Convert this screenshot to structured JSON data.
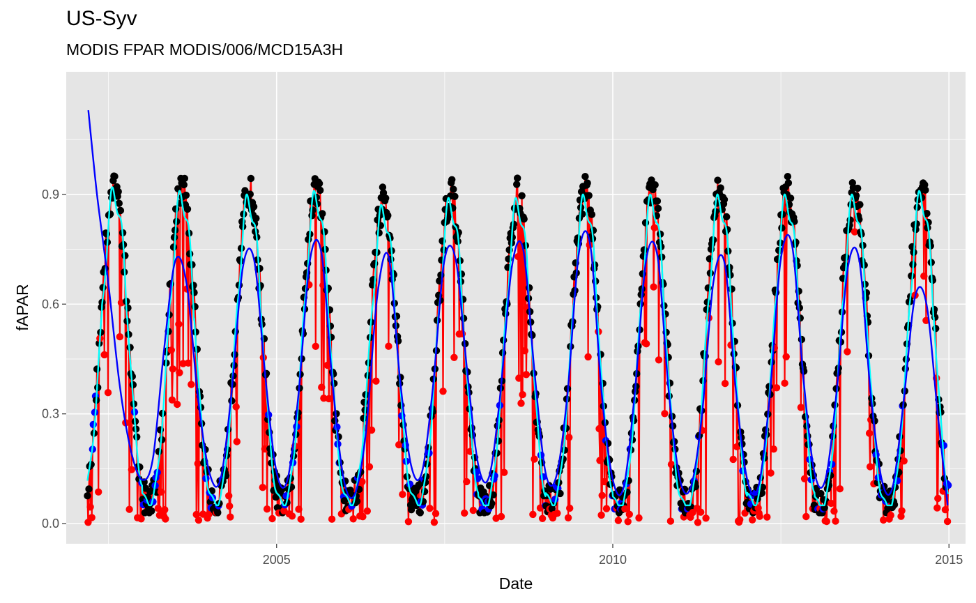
{
  "title": "US-Syv",
  "subtitle": "MODIS FPAR MODIS/006/MCD15A3H",
  "chart_data": {
    "type": "line",
    "title": "US-Syv",
    "subtitle": "MODIS FPAR MODIS/006/MCD15A3H",
    "xlabel": "Date",
    "ylabel": "fAPAR",
    "xlim": [
      "2001-11-15",
      "2015-04-01"
    ],
    "ylim": [
      -0.055,
      1.235
    ],
    "x_ticks": [
      "2005",
      "2010",
      "2015"
    ],
    "y_ticks": [
      "0.0",
      "0.3",
      "0.6",
      "0.9"
    ],
    "grid": true,
    "legend": "none",
    "colors": {
      "panel": "#e5e5e5",
      "grid": "#ffffff",
      "raw_points": "#000000",
      "flagged_points": "#ff0000",
      "gapfilled_points": "#0000ff",
      "raw_line": "#ff0000",
      "spline_smooth": "#00ffff",
      "loess_smooth": "#0000ff"
    },
    "seasonal_pattern": {
      "years": [
        2002,
        2003,
        2004,
        2005,
        2006,
        2007,
        2008,
        2009,
        2010,
        2011,
        2012,
        2013,
        2014
      ],
      "summer_peak": [
        0.93,
        0.92,
        0.91,
        0.92,
        0.88,
        0.9,
        0.9,
        0.91,
        0.91,
        0.91,
        0.91,
        0.91,
        0.92
      ],
      "winter_min": [
        0.08,
        0.06,
        0.06,
        0.06,
        0.06,
        0.06,
        0.05,
        0.06,
        0.05,
        0.05,
        0.06,
        0.05,
        0.05
      ]
    },
    "series": [
      {
        "key": "loess_smooth",
        "x": [
          "2002-03-15",
          "2002-05-01",
          "2002-07-01",
          "2002-09-01",
          "2002-11-01",
          "2003-01-01",
          "2003-03-01",
          "2003-05-01",
          "2003-07-01",
          "2003-09-01",
          "2003-11-01",
          "2004-01-01",
          "2004-03-01",
          "2004-05-01",
          "2004-07-01",
          "2004-09-01",
          "2004-11-01",
          "2005-01-01",
          "2005-03-01",
          "2005-05-01",
          "2005-07-01",
          "2005-09-01",
          "2005-11-01",
          "2006-01-01",
          "2006-03-01",
          "2006-05-01",
          "2006-07-01",
          "2006-09-01",
          "2006-11-01",
          "2007-01-01",
          "2007-03-01",
          "2007-05-01",
          "2007-07-01",
          "2007-09-01",
          "2007-11-01",
          "2008-01-01",
          "2008-03-01",
          "2008-05-01",
          "2008-07-01",
          "2008-09-01",
          "2008-11-01",
          "2009-01-01",
          "2009-03-01",
          "2009-05-01",
          "2009-07-01",
          "2009-09-01",
          "2009-11-01",
          "2010-01-01",
          "2010-03-01",
          "2010-05-01",
          "2010-07-01",
          "2010-09-01",
          "2010-11-01",
          "2011-01-01",
          "2011-03-01",
          "2011-05-01",
          "2011-07-01",
          "2011-09-01",
          "2011-11-01",
          "2012-01-01",
          "2012-03-01",
          "2012-05-01",
          "2012-07-01",
          "2012-09-01",
          "2012-11-01",
          "2013-01-01",
          "2013-03-01",
          "2013-05-01",
          "2013-07-01",
          "2013-09-01",
          "2013-11-01",
          "2014-01-01",
          "2014-03-01",
          "2014-05-01",
          "2014-07-01",
          "2014-09-01",
          "2014-11-01",
          "2014-12-25"
        ],
        "y": [
          1.13,
          0.9,
          0.66,
          0.38,
          0.2,
          0.12,
          0.18,
          0.48,
          0.72,
          0.65,
          0.34,
          0.14,
          0.12,
          0.36,
          0.7,
          0.72,
          0.4,
          0.14,
          0.12,
          0.36,
          0.72,
          0.74,
          0.38,
          0.12,
          0.08,
          0.25,
          0.62,
          0.73,
          0.4,
          0.16,
          0.14,
          0.38,
          0.72,
          0.72,
          0.42,
          0.16,
          0.13,
          0.36,
          0.7,
          0.75,
          0.42,
          0.14,
          0.13,
          0.36,
          0.74,
          0.76,
          0.36,
          0.12,
          0.1,
          0.36,
          0.72,
          0.73,
          0.36,
          0.12,
          0.1,
          0.3,
          0.66,
          0.71,
          0.36,
          0.12,
          0.1,
          0.34,
          0.72,
          0.76,
          0.4,
          0.14,
          0.12,
          0.36,
          0.7,
          0.72,
          0.36,
          0.12,
          0.1,
          0.34,
          0.62,
          0.6,
          0.3,
          0.05
        ]
      }
    ]
  }
}
